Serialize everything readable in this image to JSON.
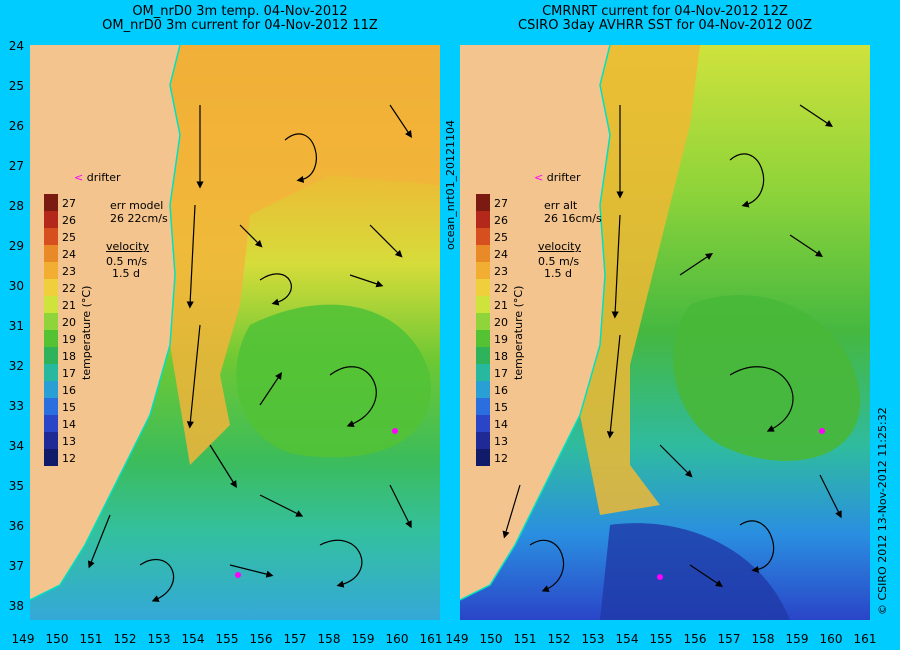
{
  "left_title": {
    "line1": "OM_nrD0 3m temp. 04-Nov-2012",
    "line2": "OM_nrD0 3m current for 04-Nov-2012 11Z"
  },
  "right_title": {
    "line1": "CMRNRT current for 04-Nov-2012 12Z",
    "line2": "CSIRO 3day AVHRR SST for 04-Nov-2012 00Z"
  },
  "y_ticks": [
    "24",
    "25",
    "26",
    "27",
    "28",
    "29",
    "30",
    "31",
    "32",
    "33",
    "34",
    "35",
    "36",
    "37",
    "38"
  ],
  "x_ticks": [
    "149",
    "150",
    "151",
    "152",
    "153",
    "154",
    "155",
    "156",
    "157",
    "158",
    "159",
    "160",
    "161"
  ],
  "colorbar": {
    "ticks": [
      "27",
      "26",
      "25",
      "24",
      "23",
      "22",
      "21",
      "20",
      "19",
      "18",
      "17",
      "16",
      "15",
      "14",
      "13",
      "12"
    ],
    "label": "temperature (°C)",
    "colors": [
      "#7a1a10",
      "#b3281b",
      "#d6501f",
      "#e98a28",
      "#f2ae33",
      "#f0cf3c",
      "#cfe33d",
      "#8fd43a",
      "#55c233",
      "#2fb35a",
      "#27b9a0",
      "#2a9fd6",
      "#2b6ee0",
      "#2a45c8",
      "#1f2a96",
      "#101c6a"
    ]
  },
  "left_legend": {
    "drifter": "drifter",
    "err_title": "err model",
    "err_value": "26 22cm/s",
    "velocity": "velocity",
    "speed": "0.5 m/s",
    "duration": "1.5 d"
  },
  "right_legend": {
    "drifter": "drifter",
    "err_title": "err alt",
    "err_value": "26 16cm/s",
    "velocity": "velocity",
    "speed": "0.5 m/s",
    "duration": "1.5 d"
  },
  "side_label": "ocean_nrt01_20121104",
  "credit": "© CSIRO 2012   13-Nov-2012 11:25:32",
  "colors": {
    "background": "#00ccff",
    "land": "#f4c48e",
    "vector": "#000000",
    "drifter": "#ff00ff",
    "coast": "#00e0c0"
  }
}
